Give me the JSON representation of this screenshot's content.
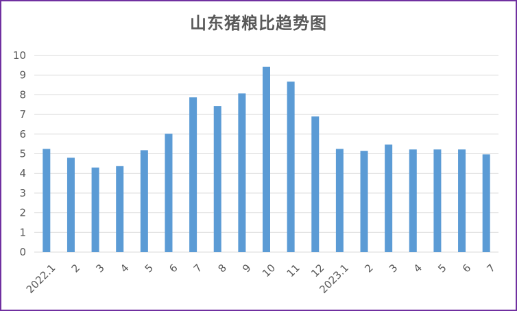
{
  "chart_data": {
    "type": "bar",
    "title": "山东猪粮比趋势图",
    "categories": [
      "2022.1",
      "2",
      "3",
      "4",
      "5",
      "6",
      "7",
      "8",
      "9",
      "10",
      "11",
      "12",
      "2023.1",
      "2",
      "3",
      "4",
      "5",
      "6",
      "7"
    ],
    "values": [
      5.25,
      4.8,
      4.3,
      4.38,
      5.18,
      6.02,
      7.87,
      7.42,
      8.07,
      9.42,
      8.67,
      6.9,
      5.25,
      5.15,
      5.47,
      5.22,
      5.22,
      5.22,
      4.97
    ],
    "ylim": [
      0,
      10
    ],
    "yticks": [
      0,
      1,
      2,
      3,
      4,
      5,
      6,
      7,
      8,
      9,
      10
    ],
    "grid": true,
    "legend": "none",
    "colors": {
      "bar": "#5B9BD5",
      "grid": "#D9D9D9",
      "border": "#7030A0",
      "text": "#595959"
    }
  }
}
